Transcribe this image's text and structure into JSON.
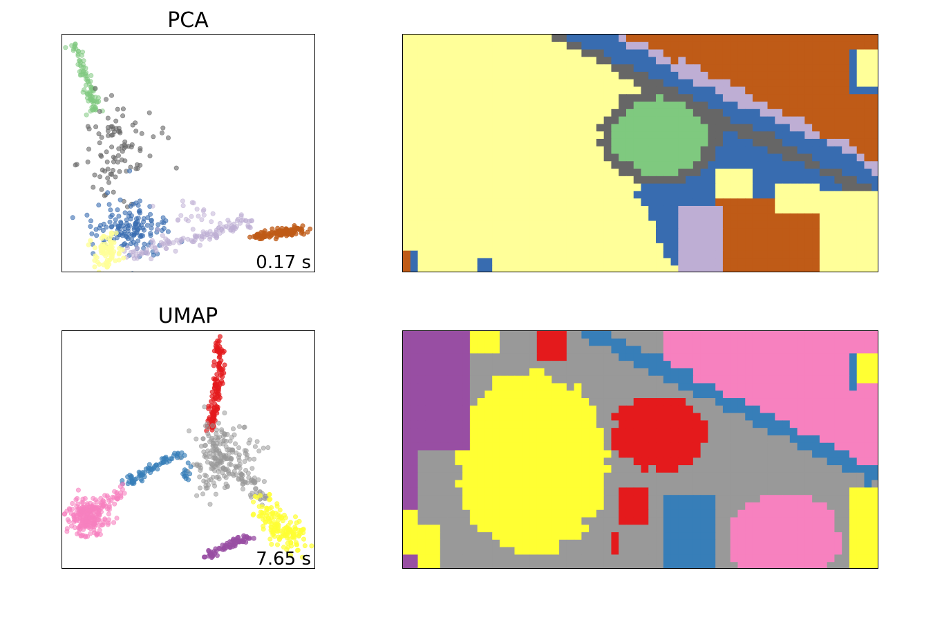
{
  "charts": {
    "pca": {
      "title": "PCA",
      "timing": "0.17 s"
    },
    "umap": {
      "title": "UMAP",
      "timing": "7.65 s"
    }
  },
  "chart_data": [
    {
      "type": "scatter",
      "title": "PCA",
      "annotation": "0.17 s",
      "axes": "no ticks",
      "palette": [
        "#ffff99",
        "#386cb0",
        "#7fc97f",
        "#666666",
        "#beaed4",
        "#bf5b17"
      ],
      "series": [
        {
          "color": "#7fc97f",
          "shape": "arm",
          "points": [
            [
              0.05,
              0.95
            ],
            [
              0.13,
              0.62
            ]
          ]
        },
        {
          "color": "#666666",
          "shape": "cloud",
          "points": [
            [
              0.15,
              0.68
            ],
            [
              0.42,
              0.33
            ]
          ]
        },
        {
          "color": "#386cb0",
          "shape": "cloud",
          "points": [
            [
              0.17,
              0.27
            ],
            [
              0.42,
              0.09
            ]
          ]
        },
        {
          "color": "#beaed4",
          "shape": "arm",
          "points": [
            [
              0.25,
              0.07
            ],
            [
              0.75,
              0.25
            ]
          ]
        },
        {
          "color": "#bf5b17",
          "shape": "arm",
          "points": [
            [
              0.75,
              0.15
            ],
            [
              0.96,
              0.18
            ]
          ]
        },
        {
          "color": "#ffff99",
          "shape": "cloud",
          "points": [
            [
              0.13,
              0.04
            ],
            [
              0.24,
              0.18
            ]
          ]
        }
      ]
    },
    {
      "type": "heatmap",
      "title": "",
      "description": "PCA cluster map",
      "palette": [
        "#ffff99",
        "#386cb0",
        "#7fc97f",
        "#666666",
        "#beaed4",
        "#bf5b17"
      ],
      "grid": [
        64,
        32
      ],
      "regions": [
        {
          "color": "#ffff99",
          "area": "left"
        },
        {
          "color": "#bf5b17",
          "area": "upper-right and lower-right"
        },
        {
          "color": "#7fc97f",
          "area": "center-top"
        },
        {
          "color": "#666666",
          "area": "border around green"
        },
        {
          "color": "#386cb0",
          "area": "boundary band"
        },
        {
          "color": "#beaed4",
          "area": "boundary band"
        }
      ]
    },
    {
      "type": "scatter",
      "title": "UMAP",
      "annotation": "7.65 s",
      "axes": "no ticks",
      "palette": [
        "#e41a1c",
        "#999999",
        "#377eb8",
        "#f781bf",
        "#ffff33",
        "#984ea3"
      ],
      "series": [
        {
          "color": "#e41a1c",
          "shape": "arm",
          "points": [
            [
              0.62,
              0.96
            ],
            [
              0.58,
              0.58
            ]
          ]
        },
        {
          "color": "#999999",
          "shape": "cloud",
          "points": [
            [
              0.55,
              0.58
            ],
            [
              0.8,
              0.27
            ]
          ]
        },
        {
          "color": "#377eb8",
          "shape": "arm",
          "points": [
            [
              0.24,
              0.36
            ],
            [
              0.5,
              0.49
            ]
          ]
        },
        {
          "color": "#f781bf",
          "shape": "blob",
          "points": [
            [
              0.04,
              0.2
            ],
            [
              0.25,
              0.34
            ]
          ]
        },
        {
          "color": "#ffff33",
          "shape": "cloud",
          "points": [
            [
              0.74,
              0.08
            ],
            [
              0.96,
              0.3
            ]
          ]
        },
        {
          "color": "#984ea3",
          "shape": "arm",
          "points": [
            [
              0.55,
              0.07
            ],
            [
              0.74,
              0.15
            ]
          ]
        }
      ]
    },
    {
      "type": "heatmap",
      "title": "",
      "description": "UMAP cluster map",
      "palette": [
        "#e41a1c",
        "#999999",
        "#377eb8",
        "#f781bf",
        "#ffff33",
        "#984ea3"
      ],
      "grid": [
        64,
        32
      ],
      "regions": [
        {
          "color": "#984ea3",
          "area": "left edge"
        },
        {
          "color": "#ffff33",
          "area": "left-center"
        },
        {
          "color": "#999999",
          "area": "boundary"
        },
        {
          "color": "#e41a1c",
          "area": "center-top"
        },
        {
          "color": "#f781bf",
          "area": "upper-right and lower-right"
        },
        {
          "color": "#377eb8",
          "area": "boundary band"
        }
      ]
    }
  ]
}
